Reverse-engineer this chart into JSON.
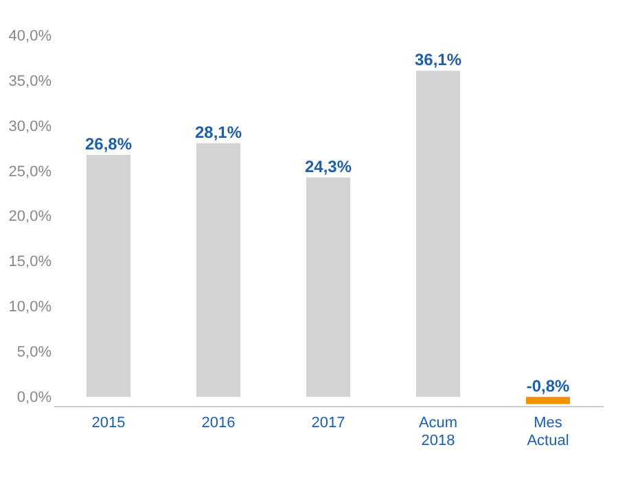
{
  "chart_data": {
    "type": "bar",
    "categories": [
      "2015",
      "2016",
      "2017",
      "Acum 2018",
      "Mes Actual"
    ],
    "values": [
      26.8,
      28.1,
      24.3,
      36.1,
      -0.8
    ],
    "colors": [
      "#d1d3d4",
      "#d1d3d4",
      "#d1d3d4",
      "#d1d3d4",
      "#f39200"
    ],
    "value_labels": [
      "26,8%",
      "28,1%",
      "24,3%",
      "36,1%",
      "-0,8%"
    ],
    "ylim": [
      -1,
      40
    ],
    "yticks": [
      {
        "value": 0,
        "label": "0,0%"
      },
      {
        "value": 5,
        "label": "5,0%"
      },
      {
        "value": 10,
        "label": "10,0%"
      },
      {
        "value": 15,
        "label": "15,0%"
      },
      {
        "value": 20,
        "label": "20,0%"
      },
      {
        "value": 25,
        "label": "25,0%"
      },
      {
        "value": 30,
        "label": "30,0%"
      },
      {
        "value": 35,
        "label": "35,0%"
      },
      {
        "value": 40,
        "label": "40,0%"
      }
    ],
    "grid": false
  }
}
